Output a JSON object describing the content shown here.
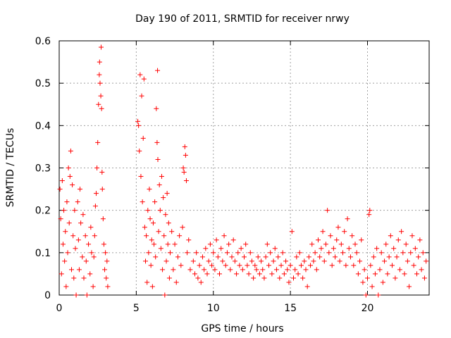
{
  "chart_data": {
    "type": "scatter",
    "title": "Day 190 of 2011, SRMTID for receiver nrwy",
    "xlabel": "GPS time / hours",
    "ylabel": "SRMTID / TECUs",
    "xlim": [
      0,
      24
    ],
    "ylim": [
      0,
      0.6
    ],
    "xticks": [
      0,
      5,
      10,
      15,
      20
    ],
    "yticks": [
      0,
      0.1,
      0.2,
      0.3,
      0.4,
      0.5,
      0.6
    ],
    "grid": true,
    "marker": "+",
    "color": "#ff0000",
    "series": [
      {
        "points": [
          [
            0.05,
            0.25
          ],
          [
            0.1,
            0.18
          ],
          [
            0.15,
            0.05
          ],
          [
            0.2,
            0.27
          ],
          [
            0.25,
            0.12
          ],
          [
            0.3,
            0.2
          ],
          [
            0.35,
            0.08
          ],
          [
            0.4,
            0.15
          ],
          [
            0.45,
            0.02
          ],
          [
            0.5,
            0.22
          ],
          [
            0.55,
            0.1
          ],
          [
            0.6,
            0.3
          ],
          [
            0.65,
            0.17
          ],
          [
            0.7,
            0.28
          ],
          [
            0.75,
            0.34
          ],
          [
            0.8,
            0.06
          ],
          [
            0.85,
            0.26
          ],
          [
            0.9,
            0.14
          ],
          [
            0.95,
            0.04
          ],
          [
            1.0,
            0.2
          ],
          [
            1.05,
            0.11
          ],
          [
            1.1,
            0.0
          ],
          [
            1.2,
            0.22
          ],
          [
            1.25,
            0.13
          ],
          [
            1.3,
            0.06
          ],
          [
            1.35,
            0.25
          ],
          [
            1.4,
            0.17
          ],
          [
            1.5,
            0.09
          ],
          [
            1.55,
            0.19
          ],
          [
            1.6,
            0.04
          ],
          [
            1.7,
            0.14
          ],
          [
            1.75,
            0.08
          ],
          [
            1.8,
            0.0
          ],
          [
            1.9,
            0.12
          ],
          [
            2.0,
            0.05
          ],
          [
            2.05,
            0.16
          ],
          [
            2.1,
            0.1
          ],
          [
            2.2,
            0.02
          ],
          [
            2.25,
            0.09
          ],
          [
            2.3,
            0.14
          ],
          [
            2.35,
            0.21
          ],
          [
            2.4,
            0.24
          ],
          [
            2.45,
            0.3
          ],
          [
            2.5,
            0.36
          ],
          [
            2.55,
            0.45
          ],
          [
            2.6,
            0.52
          ],
          [
            2.62,
            0.55
          ],
          [
            2.65,
            0.5
          ],
          [
            2.7,
            0.47
          ],
          [
            2.72,
            0.585
          ],
          [
            2.75,
            0.44
          ],
          [
            2.78,
            0.29
          ],
          [
            2.8,
            0.25
          ],
          [
            2.85,
            0.18
          ],
          [
            2.9,
            0.12
          ],
          [
            2.95,
            0.06
          ],
          [
            3.0,
            0.1
          ],
          [
            3.05,
            0.04
          ],
          [
            3.1,
            0.08
          ],
          [
            3.15,
            0.02
          ],
          [
            5.1,
            0.41
          ],
          [
            5.15,
            0.4
          ],
          [
            5.2,
            0.34
          ],
          [
            5.25,
            0.52
          ],
          [
            5.3,
            0.28
          ],
          [
            5.35,
            0.47
          ],
          [
            5.4,
            0.22
          ],
          [
            5.45,
            0.37
          ],
          [
            5.5,
            0.51
          ],
          [
            5.55,
            0.16
          ],
          [
            5.6,
            0.08
          ],
          [
            5.65,
            0.14
          ],
          [
            5.7,
            0.03
          ],
          [
            5.75,
            0.2
          ],
          [
            5.8,
            0.1
          ],
          [
            5.85,
            0.25
          ],
          [
            5.9,
            0.18
          ],
          [
            5.95,
            0.07
          ],
          [
            6.0,
            0.13
          ],
          [
            6.05,
            0.02
          ],
          [
            6.1,
            0.17
          ],
          [
            6.15,
            0.12
          ],
          [
            6.2,
            0.22
          ],
          [
            6.25,
            0.09
          ],
          [
            6.3,
            0.44
          ],
          [
            6.35,
            0.36
          ],
          [
            6.38,
            0.53
          ],
          [
            6.4,
            0.32
          ],
          [
            6.45,
            0.15
          ],
          [
            6.5,
            0.26
          ],
          [
            6.55,
            0.2
          ],
          [
            6.6,
            0.11
          ],
          [
            6.65,
            0.28
          ],
          [
            6.7,
            0.06
          ],
          [
            6.75,
            0.23
          ],
          [
            6.8,
            0.14
          ],
          [
            6.85,
            0.0
          ],
          [
            6.9,
            0.19
          ],
          [
            6.95,
            0.08
          ],
          [
            7.0,
            0.24
          ],
          [
            7.05,
            0.12
          ],
          [
            7.1,
            0.17
          ],
          [
            7.15,
            0.04
          ],
          [
            7.2,
            0.1
          ],
          [
            7.3,
            0.15
          ],
          [
            7.4,
            0.06
          ],
          [
            7.5,
            0.12
          ],
          [
            7.6,
            0.03
          ],
          [
            7.7,
            0.09
          ],
          [
            7.8,
            0.14
          ],
          [
            7.9,
            0.07
          ],
          [
            8.0,
            0.16
          ],
          [
            8.05,
            0.3
          ],
          [
            8.1,
            0.29
          ],
          [
            8.15,
            0.35
          ],
          [
            8.2,
            0.33
          ],
          [
            8.25,
            0.27
          ],
          [
            8.3,
            0.1
          ],
          [
            8.4,
            0.13
          ],
          [
            8.5,
            0.06
          ],
          [
            8.7,
            0.08
          ],
          [
            8.8,
            0.05
          ],
          [
            8.9,
            0.1
          ],
          [
            9.0,
            0.04
          ],
          [
            9.1,
            0.07
          ],
          [
            9.2,
            0.03
          ],
          [
            9.3,
            0.09
          ],
          [
            9.4,
            0.06
          ],
          [
            9.5,
            0.11
          ],
          [
            9.6,
            0.05
          ],
          [
            9.7,
            0.08
          ],
          [
            9.8,
            0.12
          ],
          [
            9.9,
            0.07
          ],
          [
            10.0,
            0.1
          ],
          [
            10.1,
            0.06
          ],
          [
            10.2,
            0.13
          ],
          [
            10.3,
            0.09
          ],
          [
            10.4,
            0.05
          ],
          [
            10.5,
            0.11
          ],
          [
            10.6,
            0.08
          ],
          [
            10.7,
            0.14
          ],
          [
            10.8,
            0.07
          ],
          [
            10.9,
            0.1
          ],
          [
            11.0,
            0.12
          ],
          [
            11.1,
            0.06
          ],
          [
            11.2,
            0.09
          ],
          [
            11.3,
            0.13
          ],
          [
            11.4,
            0.08
          ],
          [
            11.5,
            0.05
          ],
          [
            11.6,
            0.1
          ],
          [
            11.7,
            0.07
          ],
          [
            11.8,
            0.11
          ],
          [
            11.9,
            0.06
          ],
          [
            12.0,
            0.09
          ],
          [
            12.1,
            0.12
          ],
          [
            12.2,
            0.07
          ],
          [
            12.3,
            0.05
          ],
          [
            12.4,
            0.1
          ],
          [
            12.5,
            0.08
          ],
          [
            12.6,
            0.04
          ],
          [
            12.7,
            0.07
          ],
          [
            12.8,
            0.06
          ],
          [
            12.9,
            0.09
          ],
          [
            13.0,
            0.05
          ],
          [
            13.1,
            0.08
          ],
          [
            13.2,
            0.06
          ],
          [
            13.3,
            0.04
          ],
          [
            13.4,
            0.09
          ],
          [
            13.5,
            0.12
          ],
          [
            13.6,
            0.07
          ],
          [
            13.7,
            0.1
          ],
          [
            13.8,
            0.05
          ],
          [
            13.9,
            0.08
          ],
          [
            14.0,
            0.11
          ],
          [
            14.1,
            0.06
          ],
          [
            14.2,
            0.09
          ],
          [
            14.3,
            0.04
          ],
          [
            14.4,
            0.07
          ],
          [
            14.5,
            0.1
          ],
          [
            14.6,
            0.05
          ],
          [
            14.7,
            0.08
          ],
          [
            14.8,
            0.06
          ],
          [
            14.9,
            0.03
          ],
          [
            15.0,
            0.07
          ],
          [
            15.1,
            0.15
          ],
          [
            15.2,
            0.04
          ],
          [
            15.3,
            0.06
          ],
          [
            15.4,
            0.09
          ],
          [
            15.5,
            0.05
          ],
          [
            15.6,
            0.1
          ],
          [
            15.7,
            0.07
          ],
          [
            15.8,
            0.04
          ],
          [
            15.9,
            0.08
          ],
          [
            16.0,
            0.06
          ],
          [
            16.1,
            0.02
          ],
          [
            16.2,
            0.09
          ],
          [
            16.3,
            0.07
          ],
          [
            16.4,
            0.12
          ],
          [
            16.5,
            0.08
          ],
          [
            16.6,
            0.1
          ],
          [
            16.7,
            0.06
          ],
          [
            16.8,
            0.13
          ],
          [
            16.9,
            0.09
          ],
          [
            17.0,
            0.11
          ],
          [
            17.1,
            0.15
          ],
          [
            17.2,
            0.08
          ],
          [
            17.3,
            0.12
          ],
          [
            17.4,
            0.2
          ],
          [
            17.5,
            0.1
          ],
          [
            17.6,
            0.14
          ],
          [
            17.7,
            0.07
          ],
          [
            17.8,
            0.11
          ],
          [
            17.9,
            0.09
          ],
          [
            18.0,
            0.13
          ],
          [
            18.1,
            0.16
          ],
          [
            18.2,
            0.08
          ],
          [
            18.3,
            0.12
          ],
          [
            18.4,
            0.1
          ],
          [
            18.5,
            0.15
          ],
          [
            18.6,
            0.07
          ],
          [
            18.7,
            0.18
          ],
          [
            18.8,
            0.11
          ],
          [
            18.9,
            0.09
          ],
          [
            19.0,
            0.14
          ],
          [
            19.1,
            0.07
          ],
          [
            19.2,
            0.12
          ],
          [
            19.3,
            0.1
          ],
          [
            19.4,
            0.05
          ],
          [
            19.5,
            0.08
          ],
          [
            19.6,
            0.13
          ],
          [
            19.7,
            0.03
          ],
          [
            19.8,
            0.06
          ],
          [
            19.9,
            0.0
          ],
          [
            20.0,
            0.04
          ],
          [
            20.1,
            0.19
          ],
          [
            20.15,
            0.2
          ],
          [
            20.2,
            0.07
          ],
          [
            20.3,
            0.02
          ],
          [
            20.4,
            0.09
          ],
          [
            20.5,
            0.05
          ],
          [
            20.6,
            0.11
          ],
          [
            20.7,
            0.0
          ],
          [
            20.8,
            0.06
          ],
          [
            20.9,
            0.1
          ],
          [
            21.0,
            0.03
          ],
          [
            21.1,
            0.08
          ],
          [
            21.2,
            0.12
          ],
          [
            21.3,
            0.05
          ],
          [
            21.4,
            0.09
          ],
          [
            21.5,
            0.14
          ],
          [
            21.6,
            0.07
          ],
          [
            21.7,
            0.11
          ],
          [
            21.8,
            0.04
          ],
          [
            21.9,
            0.09
          ],
          [
            22.0,
            0.13
          ],
          [
            22.1,
            0.06
          ],
          [
            22.2,
            0.15
          ],
          [
            22.3,
            0.1
          ],
          [
            22.4,
            0.05
          ],
          [
            22.5,
            0.12
          ],
          [
            22.6,
            0.08
          ],
          [
            22.7,
            0.02
          ],
          [
            22.8,
            0.1
          ],
          [
            22.9,
            0.14
          ],
          [
            23.0,
            0.07
          ],
          [
            23.1,
            0.11
          ],
          [
            23.2,
            0.05
          ],
          [
            23.3,
            0.09
          ],
          [
            23.4,
            0.13
          ],
          [
            23.5,
            0.06
          ],
          [
            23.6,
            0.1
          ],
          [
            23.7,
            0.04
          ],
          [
            23.8,
            0.08
          ]
        ]
      }
    ]
  }
}
